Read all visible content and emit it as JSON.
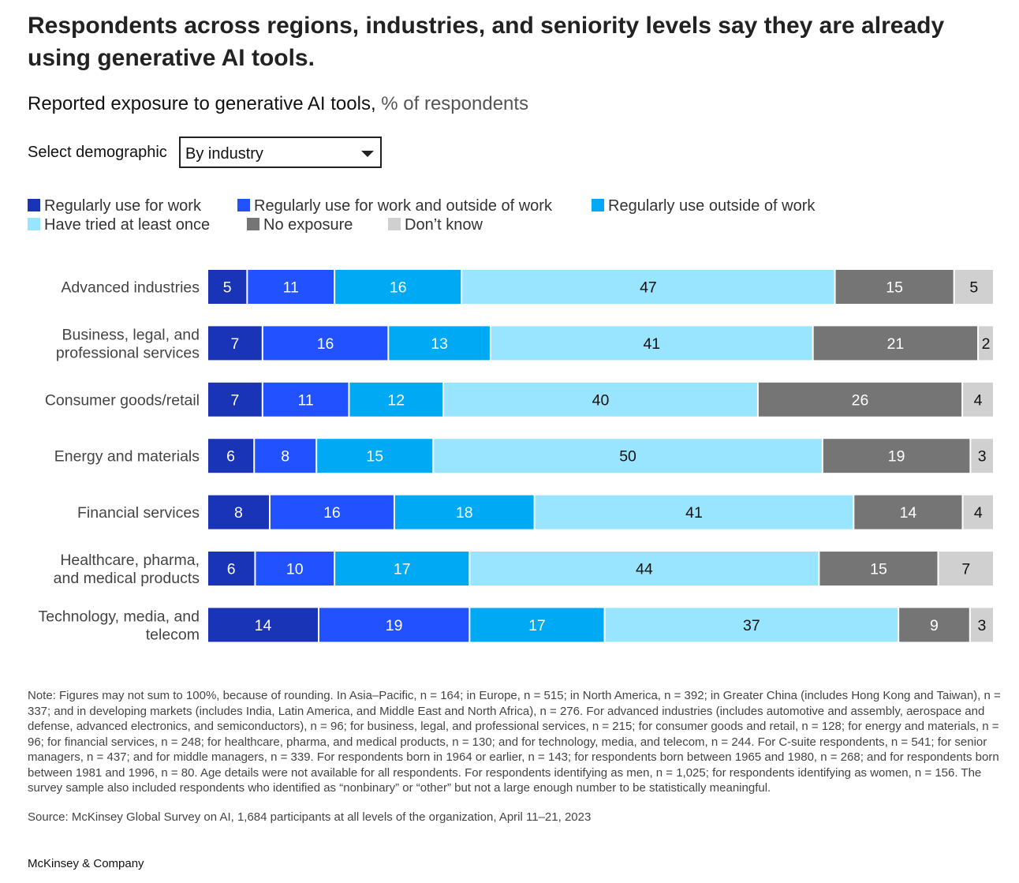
{
  "title": "Respondents across regions, industries, and seniority levels say they are already using generative AI tools.",
  "subtitle": {
    "bold": "Reported exposure to generative AI tools,",
    "unit": " % of respondents"
  },
  "select": {
    "label": "Select demographic",
    "value": "By industry"
  },
  "colors": {
    "regular_work": "#1a34b8",
    "work_and_outside": "#2251ff",
    "outside_work": "#00a9f4",
    "tried_once": "#99e4ff",
    "no_exposure": "#757575",
    "dont_know": "#d0d0d0"
  },
  "chart_data": {
    "type": "bar",
    "orientation": "horizontal-stacked",
    "title": "Reported exposure to generative AI tools, % of respondents",
    "unit": "%",
    "categories": [
      "Advanced industries",
      "Business, legal, and professional services",
      "Consumer goods/retail",
      "Energy and materials",
      "Financial services",
      "Healthcare, pharma, and medical products",
      "Technology, media, and telecom"
    ],
    "category_lines": [
      [
        "Advanced industries"
      ],
      [
        "Business, legal, and",
        "professional services"
      ],
      [
        "Consumer goods/retail"
      ],
      [
        "Energy and materials"
      ],
      [
        "Financial services"
      ],
      [
        "Healthcare, pharma,",
        "and medical products"
      ],
      [
        "Technology, media, and",
        "telecom"
      ]
    ],
    "series": [
      {
        "name": "Regularly use for work",
        "color": "#1a34b8",
        "label_color": "#ffffff",
        "values": [
          5,
          7,
          7,
          6,
          8,
          6,
          14
        ]
      },
      {
        "name": "Regularly use for work and outside of work",
        "color": "#2251ff",
        "label_color": "#ffffff",
        "values": [
          11,
          16,
          11,
          8,
          16,
          10,
          19
        ]
      },
      {
        "name": "Regularly use outside of work",
        "color": "#00a9f4",
        "label_color": "#ffffff",
        "values": [
          16,
          13,
          12,
          15,
          18,
          17,
          17
        ]
      },
      {
        "name": "Have tried at least once",
        "color": "#99e4ff",
        "label_color": "#111111",
        "values": [
          47,
          41,
          40,
          50,
          41,
          44,
          37
        ]
      },
      {
        "name": "No exposure",
        "color": "#757575",
        "label_color": "#ffffff",
        "values": [
          15,
          21,
          26,
          19,
          14,
          15,
          9
        ]
      },
      {
        "name": "Don’t know",
        "color": "#d0d0d0",
        "label_color": "#111111",
        "values": [
          5,
          2,
          4,
          3,
          4,
          7,
          3
        ]
      }
    ],
    "legend_position": "top"
  },
  "note": "Note: Figures may not sum to 100%, because of rounding. In Asia–Pacific, n = 164; in Europe, n = 515; in North America, n = 392; in Greater China (includes Hong Kong and Taiwan), n = 337; and in developing markets (includes India, Latin America, and Middle East and North Africa), n = 276. For advanced industries (includes automotive and assembly, aerospace and defense, advanced electronics, and semiconductors), n = 96; for business, legal, and professional services, n = 215; for consumer goods and retail, n = 128; for energy and materials, n = 96; for financial services, n = 248; for healthcare, pharma, and medical products, n = 130; and for technology, media, and telecom, n = 244. For C-suite respondents, n = 541; for senior managers, n = 437; and for middle managers, n = 339. For respondents born in 1964 or earlier, n = 143; for respondents born between 1965 and 1980, n = 268; and for respondents born between 1981 and 1996, n = 80. Age details were not available for all respondents. For respondents identifying as men, n = 1,025; for respondents identifying as women, n = 156. The survey sample also included respondents who identified as “nonbinary” or “other” but not a large enough number to be statistically meaningful.",
  "source": "Source: McKinsey Global Survey on AI, 1,684 participants at all levels of the organization, April 11–21, 2023",
  "brand": "McKinsey & Company"
}
